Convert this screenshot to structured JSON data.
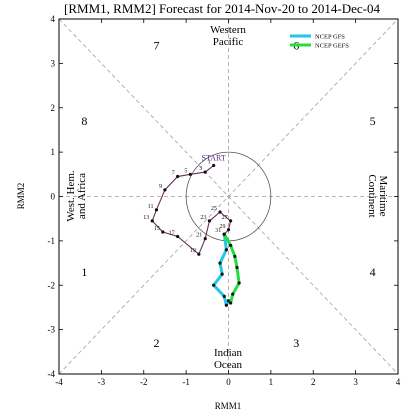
{
  "chart_data": {
    "type": "line",
    "title": "[RMM1, RMM2] Forecast for 2014-Nov-20 to 2014-Dec-04",
    "xlabel": "RMM1",
    "ylabel": "RMM2",
    "xlim": [
      -4,
      4
    ],
    "ylim": [
      -4,
      4
    ],
    "xticks": [
      "-4",
      "-3",
      "-2",
      "-1",
      "0",
      "1",
      "2",
      "3",
      "4"
    ],
    "yticks": [
      "-4",
      "-3",
      "-2",
      "-1",
      "0",
      "1",
      "2",
      "3",
      "4"
    ],
    "grid": "dashed diagonals and axes, unit circle",
    "legend_position": "top-right",
    "regions": {
      "top_line1": "Western",
      "top_line2": "Pacific",
      "bottom_line1": "Indian",
      "bottom_line2": "Ocean",
      "left_line1": "West. Hem.",
      "left_line2": "and Africa",
      "right_line1": "Maritime",
      "right_line2": "Continent"
    },
    "phases": [
      {
        "label": "1",
        "x": -3.4,
        "y": -1.7
      },
      {
        "label": "2",
        "x": -1.7,
        "y": -3.3
      },
      {
        "label": "3",
        "x": 1.6,
        "y": -3.3
      },
      {
        "label": "4",
        "x": 3.4,
        "y": -1.7
      },
      {
        "label": "5",
        "x": 3.4,
        "y": 1.7
      },
      {
        "label": "6",
        "x": 1.6,
        "y": 3.4
      },
      {
        "label": "7",
        "x": -1.7,
        "y": 3.4
      },
      {
        "label": "8",
        "x": -3.4,
        "y": 1.7
      }
    ],
    "start_label": "START",
    "start_point": {
      "x": -0.35,
      "y": 0.7
    },
    "observed": {
      "color": "#6b2d5c",
      "points": [
        {
          "label": "1",
          "x": -0.35,
          "y": 0.7
        },
        {
          "label": "3",
          "x": -0.55,
          "y": 0.55
        },
        {
          "label": "5",
          "x": -0.9,
          "y": 0.5
        },
        {
          "label": "7",
          "x": -1.2,
          "y": 0.45
        },
        {
          "label": "9",
          "x": -1.5,
          "y": 0.15
        },
        {
          "label": "11",
          "x": -1.7,
          "y": -0.3
        },
        {
          "label": "13",
          "x": -1.8,
          "y": -0.55
        },
        {
          "label": "15",
          "x": -1.55,
          "y": -0.8
        },
        {
          "label": "17",
          "x": -1.2,
          "y": -0.9
        },
        {
          "label": "19",
          "x": -0.7,
          "y": -1.3
        },
        {
          "label": "21",
          "x": -0.55,
          "y": -0.95
        },
        {
          "label": "23",
          "x": -0.45,
          "y": -0.55
        },
        {
          "label": "25",
          "x": -0.2,
          "y": -0.35
        },
        {
          "label": "27",
          "x": 0.05,
          "y": -0.55
        },
        {
          "label": "29",
          "x": 0.0,
          "y": -0.75
        },
        {
          "label": "31",
          "x": -0.1,
          "y": -0.85
        }
      ]
    },
    "series": [
      {
        "name": "NCEP GFS",
        "color": "#22c7e8",
        "points": [
          {
            "x": -0.1,
            "y": -0.85
          },
          {
            "x": -0.05,
            "y": -1.2
          },
          {
            "x": -0.2,
            "y": -1.5
          },
          {
            "x": -0.15,
            "y": -1.75
          },
          {
            "x": -0.35,
            "y": -2.0
          },
          {
            "x": -0.1,
            "y": -2.25
          },
          {
            "x": -0.05,
            "y": -2.45
          },
          {
            "x": 0.0,
            "y": -2.35
          }
        ]
      },
      {
        "name": "NCEP GEFS",
        "color": "#22e03a",
        "points": [
          {
            "x": -0.1,
            "y": -0.85
          },
          {
            "x": 0.05,
            "y": -1.1
          },
          {
            "x": 0.15,
            "y": -1.35
          },
          {
            "x": 0.2,
            "y": -1.6
          },
          {
            "x": 0.25,
            "y": -1.95
          },
          {
            "x": 0.1,
            "y": -2.2
          },
          {
            "x": 0.05,
            "y": -2.4
          }
        ]
      }
    ]
  }
}
